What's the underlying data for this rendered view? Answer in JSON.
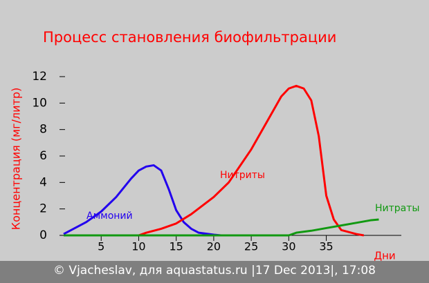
{
  "chart_data": {
    "type": "line",
    "title": "Процесс становления биофильтрации",
    "y_label": "Концентрация (мг/литр)",
    "x_label": "Дни",
    "footer": "© Vjacheslav, для aquastatus.ru |17 Dec 2013|, 17:08",
    "xlim": [
      0,
      45
    ],
    "xticks": [
      5,
      10,
      15,
      20,
      25,
      30,
      35
    ],
    "ylim": [
      0,
      12
    ],
    "yticks": [
      0,
      2,
      4,
      6,
      8,
      10,
      12
    ],
    "series": [
      {
        "name": "Аммоний",
        "color": "#2200ee",
        "x": [
          0,
          1,
          3,
          5,
          7,
          9,
          10,
          11,
          12,
          13,
          14,
          15,
          16,
          17,
          18,
          20,
          21
        ],
        "values": [
          0.1,
          0.4,
          1,
          1.8,
          2.9,
          4.3,
          4.9,
          5.2,
          5.3,
          4.9,
          3.5,
          1.9,
          1.0,
          0.5,
          0.2,
          0.05,
          0
        ]
      },
      {
        "name": "Нитриты",
        "color": "#ff0000",
        "x": [
          10,
          11,
          13,
          15,
          17,
          20,
          22,
          25,
          27,
          29,
          30,
          31,
          32,
          33,
          34,
          35,
          36,
          37,
          39,
          40
        ],
        "values": [
          0,
          0.2,
          0.5,
          0.9,
          1.6,
          2.9,
          4,
          6.5,
          8.5,
          10.5,
          11.1,
          11.3,
          11.1,
          10.2,
          7.5,
          3,
          1.2,
          0.4,
          0.1,
          0
        ]
      },
      {
        "name": "Нитраты",
        "color": "#119911",
        "x": [
          0,
          30,
          31,
          33,
          35,
          37,
          39,
          41,
          42
        ],
        "values": [
          0,
          0,
          0.2,
          0.35,
          0.55,
          0.75,
          0.95,
          1.15,
          1.2
        ]
      }
    ]
  }
}
